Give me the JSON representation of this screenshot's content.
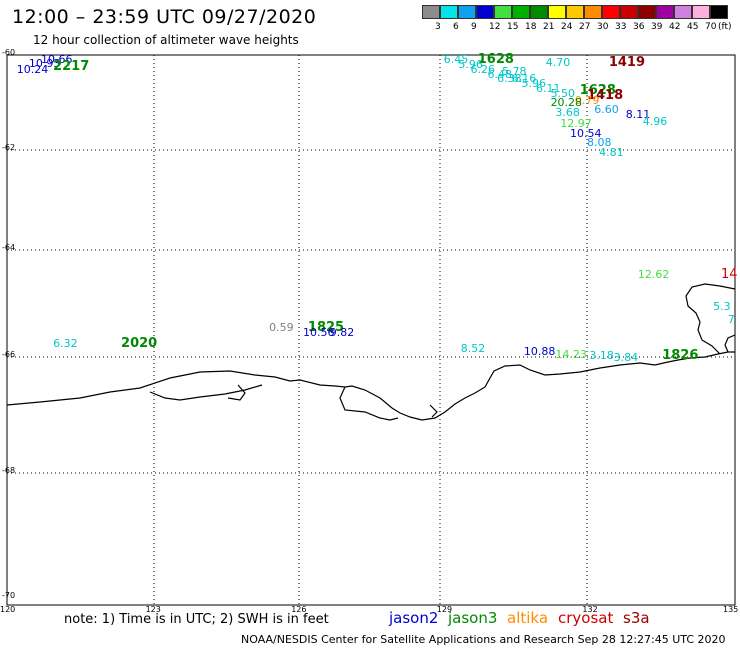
{
  "header": {
    "title": "12:00 – 23:59 UTC 09/27/2020",
    "subtitle": "12 hour collection of altimeter wave heights"
  },
  "colorbar": {
    "labels": [
      "3",
      "6",
      "9",
      "12",
      "15",
      "18",
      "21",
      "24",
      "27",
      "30",
      "33",
      "36",
      "39",
      "42",
      "45",
      "70"
    ],
    "unit": "(ft)",
    "colors": [
      "#8c8c8c",
      "#00e5e5",
      "#0fa0f0",
      "#0000d0",
      "#40e040",
      "#00b000",
      "#008a00",
      "#ffff00",
      "#ffc800",
      "#ff8c00",
      "#ff0000",
      "#c80000",
      "#8c0000",
      "#a000a0",
      "#d080e0",
      "#ffb0e0",
      "#000000"
    ]
  },
  "axes": {
    "lat_labels": [
      "-60",
      "-62",
      "-64",
      "-66",
      "-68",
      "-70"
    ],
    "lon_labels": [
      "120",
      "123",
      "126",
      "129",
      "132",
      "135"
    ]
  },
  "observations": [
    {
      "text": "10.66",
      "color": "#0000c8",
      "lat": -60.1,
      "lon": 120.7,
      "size": 11
    },
    {
      "text": "10.93",
      "color": "#0000c8",
      "lat": -60.18,
      "lon": 120.45,
      "size": 11
    },
    {
      "text": "10.24",
      "color": "#0000c8",
      "lat": -60.3,
      "lon": 120.2,
      "size": 11
    },
    {
      "text": "2217",
      "color": "#008a00",
      "lat": -60.25,
      "lon": 120.95,
      "size": 13,
      "bold": true
    },
    {
      "text": "6.45",
      "color": "#00c8c8",
      "lat": -60.1,
      "lon": 129.0,
      "size": 11
    },
    {
      "text": "1628",
      "color": "#008a00",
      "lat": -60.1,
      "lon": 129.7,
      "size": 13,
      "bold": true
    },
    {
      "text": "5.96",
      "color": "#00c8c8",
      "lat": -60.2,
      "lon": 129.3,
      "size": 11
    },
    {
      "text": "6.26",
      "color": "#00c8c8",
      "lat": -60.3,
      "lon": 129.55,
      "size": 11
    },
    {
      "text": "4.70",
      "color": "#00c8c8",
      "lat": -60.15,
      "lon": 131.1,
      "size": 11
    },
    {
      "text": "1419",
      "color": "#8c0000",
      "lat": -60.15,
      "lon": 132.4,
      "size": 13,
      "bold": true
    },
    {
      "text": "5.78",
      "color": "#00c8c8",
      "lat": -60.35,
      "lon": 130.2,
      "size": 11
    },
    {
      "text": "6.48",
      "color": "#00c8c8",
      "lat": -60.4,
      "lon": 129.9,
      "size": 11
    },
    {
      "text": "6.38",
      "color": "#00c8c8",
      "lat": -60.5,
      "lon": 130.1,
      "size": 11
    },
    {
      "text": "6.16",
      "color": "#00c8c8",
      "lat": -60.5,
      "lon": 130.4,
      "size": 11
    },
    {
      "text": "5.96",
      "color": "#00c8c8",
      "lat": -60.6,
      "lon": 130.6,
      "size": 11
    },
    {
      "text": "6.11",
      "color": "#00c8c8",
      "lat": -60.7,
      "lon": 130.9,
      "size": 11
    },
    {
      "text": "5.50",
      "color": "#00c8c8",
      "lat": -60.8,
      "lon": 131.2,
      "size": 11
    },
    {
      "text": "1628",
      "color": "#008a00",
      "lat": -60.75,
      "lon": 131.8,
      "size": 13,
      "bold": true
    },
    {
      "text": "1418",
      "color": "#8c0000",
      "lat": -60.85,
      "lon": 131.95,
      "size": 13,
      "bold": true
    },
    {
      "text": "0.79",
      "color": "#ff8c00",
      "lat": -60.95,
      "lon": 131.7,
      "size": 11
    },
    {
      "text": "20.28",
      "color": "#008a00",
      "lat": -61.0,
      "lon": 131.2,
      "size": 11
    },
    {
      "text": "3.68",
      "color": "#00c8c8",
      "lat": -61.2,
      "lon": 131.3,
      "size": 11
    },
    {
      "text": "6.60",
      "color": "#0fa0f0",
      "lat": -61.15,
      "lon": 132.1,
      "size": 11
    },
    {
      "text": "8.11",
      "color": "#0000c8",
      "lat": -61.25,
      "lon": 132.75,
      "size": 11
    },
    {
      "text": "4.96",
      "color": "#00c8c8",
      "lat": -61.4,
      "lon": 133.1,
      "size": 11
    },
    {
      "text": "12.97",
      "color": "#40e040",
      "lat": -61.45,
      "lon": 131.4,
      "size": 11
    },
    {
      "text": "10.54",
      "color": "#0000c8",
      "lat": -61.65,
      "lon": 131.6,
      "size": 11
    },
    {
      "text": "8.08",
      "color": "#0fa0f0",
      "lat": -61.85,
      "lon": 131.95,
      "size": 11
    },
    {
      "text": "4.81",
      "color": "#00c8c8",
      "lat": -62.05,
      "lon": 132.2,
      "size": 11
    },
    {
      "text": "12.62",
      "color": "#40e040",
      "lat": -64.45,
      "lon": 133.0,
      "size": 11
    },
    {
      "text": "14",
      "color": "#c80000",
      "lat": -64.45,
      "lon": 134.8,
      "size": 13
    },
    {
      "text": "5.3",
      "color": "#00c8c8",
      "lat": -65.05,
      "lon": 134.55,
      "size": 11
    },
    {
      "text": "7",
      "color": "#00c8c8",
      "lat": -65.3,
      "lon": 134.85,
      "size": 11
    },
    {
      "text": "6.32",
      "color": "#00c8c8",
      "lat": -65.75,
      "lon": 120.95,
      "size": 11
    },
    {
      "text": "2020",
      "color": "#008a00",
      "lat": -65.75,
      "lon": 122.35,
      "size": 13,
      "bold": true
    },
    {
      "text": "0.59",
      "color": "#808080",
      "lat": -65.45,
      "lon": 125.4,
      "size": 11
    },
    {
      "text": "1825",
      "color": "#008a00",
      "lat": -65.45,
      "lon": 126.2,
      "size": 13,
      "bold": true
    },
    {
      "text": "10.56",
      "color": "#0000c8",
      "lat": -65.55,
      "lon": 126.1,
      "size": 11
    },
    {
      "text": "9.82",
      "color": "#0000c8",
      "lat": -65.55,
      "lon": 126.65,
      "size": 11
    },
    {
      "text": "8.52",
      "color": "#00c8c8",
      "lat": -65.85,
      "lon": 129.35,
      "size": 11
    },
    {
      "text": "10.88",
      "color": "#0000c8",
      "lat": -65.9,
      "lon": 130.65,
      "size": 11
    },
    {
      "text": "14.23",
      "color": "#40e040",
      "lat": -65.95,
      "lon": 131.3,
      "size": 11
    },
    {
      "text": "3.18",
      "color": "#00c8c8",
      "lat": -65.98,
      "lon": 132.0,
      "size": 11
    },
    {
      "text": "3.84",
      "color": "#00c8c8",
      "lat": -66.0,
      "lon": 132.5,
      "size": 11
    },
    {
      "text": "1826",
      "color": "#008a00",
      "lat": -65.98,
      "lon": 133.5,
      "size": 13,
      "bold": true
    }
  ],
  "footer": {
    "note": "note:  1) Time is in UTC;  2) SWH is in feet",
    "satellites": [
      {
        "label": "jason2",
        "color": "#0000d0"
      },
      {
        "label": "jason3",
        "color": "#008a00"
      },
      {
        "label": "altika",
        "color": "#ff8c00"
      },
      {
        "label": "cryosat",
        "color": "#d00000"
      },
      {
        "label": "s3a",
        "color": "#a00000"
      }
    ],
    "credit": "NOAA/NESDIS Center for Satellite Applications and Research    Sep 28 12:27:45 UTC 2020"
  }
}
